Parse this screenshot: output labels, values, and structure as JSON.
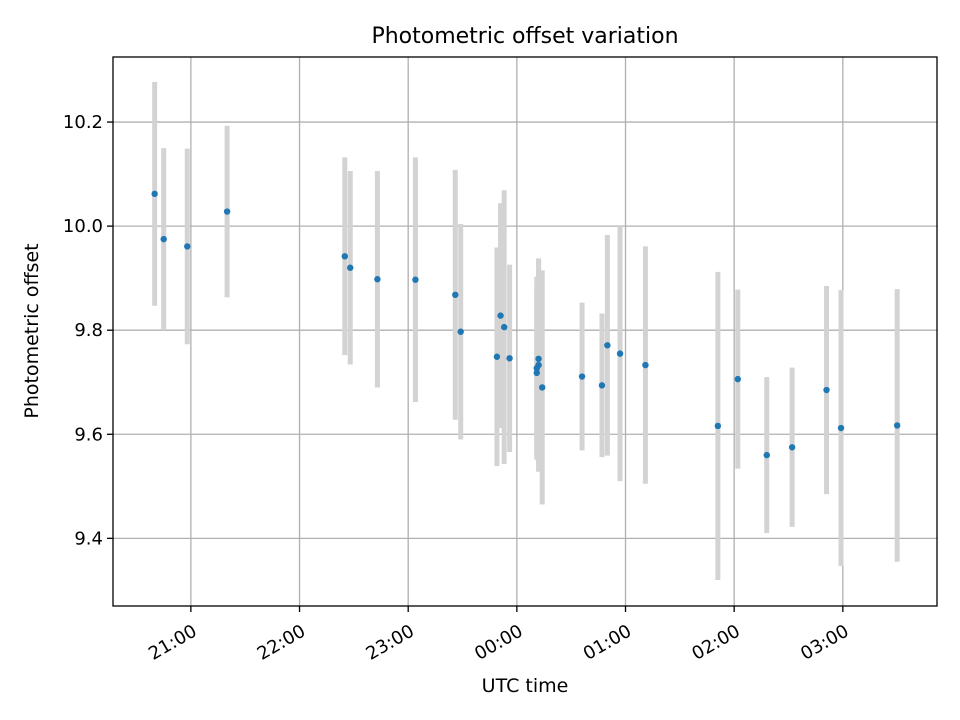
{
  "chart_data": {
    "type": "scatter",
    "title": "Photometric offset variation",
    "xlabel": "UTC time",
    "ylabel": "Photometric offset",
    "x_tick_labels": [
      "21:00",
      "22:00",
      "23:00",
      "00:00",
      "01:00",
      "02:00",
      "03:00"
    ],
    "y_tick_labels": [
      "9.4",
      "9.6",
      "9.8",
      "10.0",
      "10.2"
    ],
    "y_ticks": [
      9.4,
      9.6,
      9.8,
      10.0,
      10.2
    ],
    "xlim": [
      "20:17",
      "03:52"
    ],
    "ylim": [
      9.27,
      10.325
    ],
    "grid": true,
    "colors": {
      "point": "#1f77b4",
      "errorbar": "#d3d3d3"
    },
    "series": [
      {
        "points": [
          {
            "t": "20:40",
            "y": 10.062,
            "err": 0.215
          },
          {
            "t": "20:45",
            "y": 9.975,
            "err": 0.175
          },
          {
            "t": "20:58",
            "y": 9.961,
            "err": 0.188
          },
          {
            "t": "21:20",
            "y": 10.028,
            "err": 0.165
          },
          {
            "t": "22:25",
            "y": 9.942,
            "err": 0.19
          },
          {
            "t": "22:28",
            "y": 9.92,
            "err": 0.186
          },
          {
            "t": "22:43",
            "y": 9.898,
            "err": 0.208
          },
          {
            "t": "23:04",
            "y": 9.897,
            "err": 0.235
          },
          {
            "t": "23:26",
            "y": 9.868,
            "err": 0.24
          },
          {
            "t": "23:29",
            "y": 9.797,
            "err": 0.207
          },
          {
            "t": "23:49",
            "y": 9.749,
            "err": 0.21
          },
          {
            "t": "23:51",
            "y": 9.828,
            "err": 0.216
          },
          {
            "t": "23:53",
            "y": 9.806,
            "err": 0.263
          },
          {
            "t": "23:56",
            "y": 9.746,
            "err": 0.18
          },
          {
            "t": "00:11",
            "y": 9.718,
            "err": 0.16
          },
          {
            "t": "00:11",
            "y": 9.727,
            "err": 0.176
          },
          {
            "t": "00:12",
            "y": 9.745,
            "err": 0.19
          },
          {
            "t": "00:12",
            "y": 9.733,
            "err": 0.205
          },
          {
            "t": "00:14",
            "y": 9.69,
            "err": 0.225
          },
          {
            "t": "00:36",
            "y": 9.711,
            "err": 0.142
          },
          {
            "t": "00:47",
            "y": 9.694,
            "err": 0.138
          },
          {
            "t": "00:50",
            "y": 9.771,
            "err": 0.212
          },
          {
            "t": "00:57",
            "y": 9.755,
            "err": 0.245
          },
          {
            "t": "01:11",
            "y": 9.733,
            "err": 0.228
          },
          {
            "t": "01:51",
            "y": 9.616,
            "err": 0.296
          },
          {
            "t": "02:02",
            "y": 9.706,
            "err": 0.172
          },
          {
            "t": "02:18",
            "y": 9.56,
            "err": 0.15
          },
          {
            "t": "02:32",
            "y": 9.575,
            "err": 0.153
          },
          {
            "t": "02:51",
            "y": 9.685,
            "err": 0.2
          },
          {
            "t": "02:59",
            "y": 9.612,
            "err": 0.265
          },
          {
            "t": "03:30",
            "y": 9.617,
            "err": 0.262
          }
        ]
      }
    ]
  }
}
